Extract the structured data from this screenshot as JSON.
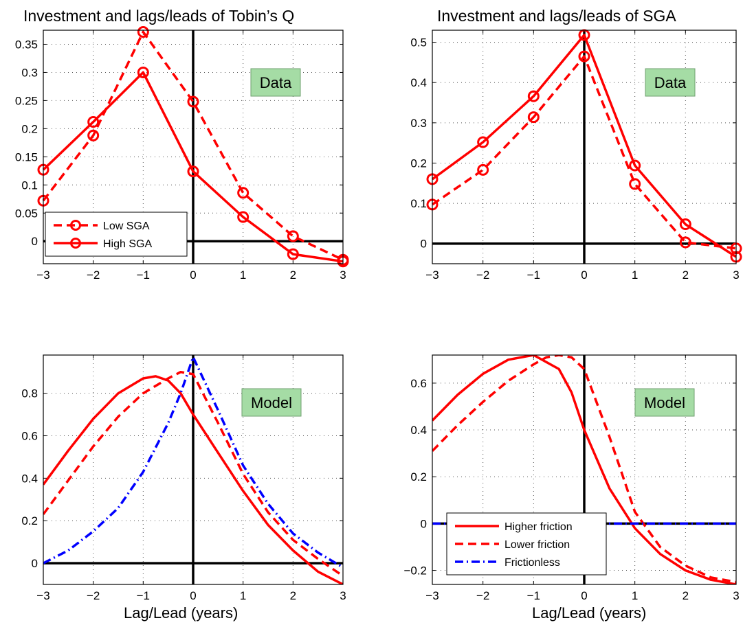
{
  "chart_data": [
    {
      "id": "tl",
      "type": "line",
      "title": "Investment and lags/leads of Tobin’s Q",
      "badge": "Data",
      "xlabel": "",
      "xlim": [
        -3,
        3
      ],
      "ylim": [
        -0.04,
        0.375
      ],
      "xticks": [
        -3,
        -2,
        -1,
        0,
        1,
        2,
        3
      ],
      "yticks": [
        0,
        0.05,
        0.1,
        0.15,
        0.2,
        0.25,
        0.3,
        0.35
      ],
      "ytick_labels": [
        "0",
        "0.05",
        "0.1",
        "0.15",
        "0.2",
        "0.25",
        "0.3",
        "0.35"
      ],
      "grid": true,
      "legend_position": "bottom-left",
      "series": [
        {
          "name": "Low SGA",
          "style": "dashed",
          "marker": "circle",
          "color": "#ff0000",
          "x": [
            -3,
            -2,
            -1,
            0,
            1,
            2,
            3
          ],
          "y": [
            0.072,
            0.188,
            0.372,
            0.248,
            0.086,
            0.009,
            -0.033
          ]
        },
        {
          "name": "High SGA",
          "style": "solid",
          "marker": "circle",
          "color": "#ff0000",
          "x": [
            -3,
            -2,
            -1,
            0,
            1,
            2,
            3
          ],
          "y": [
            0.127,
            0.212,
            0.3,
            0.124,
            0.043,
            -0.023,
            -0.036
          ]
        }
      ]
    },
    {
      "id": "tr",
      "type": "line",
      "title": "Investment and lags/leads of SGA",
      "badge": "Data",
      "xlabel": "",
      "xlim": [
        -3,
        3
      ],
      "ylim": [
        -0.05,
        0.53
      ],
      "xticks": [
        -3,
        -2,
        -1,
        0,
        1,
        2,
        3
      ],
      "yticks": [
        0,
        0.1,
        0.2,
        0.3,
        0.4,
        0.5
      ],
      "ytick_labels": [
        "0",
        "0.1",
        "0.2",
        "0.3",
        "0.4",
        "0.5"
      ],
      "grid": true,
      "legend_position": "none",
      "series": [
        {
          "name": "",
          "style": "dashed",
          "marker": "circle",
          "color": "#ff0000",
          "x": [
            -3,
            -2,
            -1,
            0,
            1,
            2,
            3
          ],
          "y": [
            0.097,
            0.183,
            0.314,
            0.465,
            0.148,
            0.003,
            -0.012
          ]
        },
        {
          "name": "",
          "style": "solid",
          "marker": "circle",
          "color": "#ff0000",
          "x": [
            -3,
            -2,
            -1,
            0,
            1,
            2,
            3
          ],
          "y": [
            0.16,
            0.252,
            0.366,
            0.518,
            0.194,
            0.048,
            -0.033
          ]
        }
      ]
    },
    {
      "id": "bl",
      "type": "line",
      "title": "",
      "badge": "Model",
      "xlabel": "Lag/Lead (years)",
      "xlim": [
        -3,
        3
      ],
      "ylim": [
        -0.1,
        0.98
      ],
      "xticks": [
        -3,
        -2,
        -1,
        0,
        1,
        2,
        3
      ],
      "yticks": [
        0,
        0.2,
        0.4,
        0.6,
        0.8
      ],
      "ytick_labels": [
        "0",
        "0.2",
        "0.4",
        "0.6",
        "0.8"
      ],
      "grid": true,
      "legend_position": "none",
      "series": [
        {
          "name": "",
          "style": "solid",
          "marker": "none",
          "color": "#ff0000",
          "x": [
            -3,
            -2.5,
            -2,
            -1.5,
            -1,
            -0.75,
            -0.5,
            -0.25,
            0,
            0.5,
            1,
            1.5,
            2,
            2.5,
            3
          ],
          "y": [
            0.37,
            0.53,
            0.68,
            0.8,
            0.87,
            0.88,
            0.86,
            0.8,
            0.7,
            0.52,
            0.34,
            0.18,
            0.06,
            -0.04,
            -0.1
          ]
        },
        {
          "name": "",
          "style": "dashed",
          "marker": "none",
          "color": "#ff0000",
          "x": [
            -3,
            -2.5,
            -2,
            -1.5,
            -1,
            -0.5,
            -0.25,
            0,
            0.5,
            1,
            1.5,
            2,
            2.5,
            3
          ],
          "y": [
            0.23,
            0.39,
            0.55,
            0.69,
            0.8,
            0.87,
            0.9,
            0.89,
            0.66,
            0.42,
            0.24,
            0.11,
            0.02,
            -0.06
          ]
        },
        {
          "name": "",
          "style": "dashdot",
          "marker": "none",
          "color": "#0000ff",
          "x": [
            -3,
            -2.5,
            -2,
            -1.5,
            -1,
            -0.5,
            -0.25,
            0,
            0.5,
            1,
            1.5,
            2,
            2.5,
            3
          ],
          "y": [
            0.0,
            0.06,
            0.15,
            0.26,
            0.43,
            0.66,
            0.8,
            0.97,
            0.72,
            0.46,
            0.28,
            0.14,
            0.05,
            -0.02
          ]
        }
      ]
    },
    {
      "id": "br",
      "type": "line",
      "title": "",
      "badge": "Model",
      "xlabel": "Lag/Lead (years)",
      "xlim": [
        -3,
        3
      ],
      "ylim": [
        -0.26,
        0.72
      ],
      "xticks": [
        -3,
        -2,
        -1,
        0,
        1,
        2,
        3
      ],
      "yticks": [
        -0.2,
        0,
        0.2,
        0.4,
        0.6
      ],
      "ytick_labels": [
        "−0.2",
        "0",
        "0.2",
        "0.4",
        "0.6"
      ],
      "grid": true,
      "legend_position": "bottom-left",
      "series": [
        {
          "name": "Higher friction",
          "style": "solid",
          "marker": "none",
          "color": "#ff0000",
          "x": [
            -3,
            -2.5,
            -2,
            -1.5,
            -1,
            -0.5,
            -0.25,
            0,
            0.5,
            1,
            1.5,
            2,
            2.5,
            3
          ],
          "y": [
            0.44,
            0.55,
            0.64,
            0.7,
            0.72,
            0.66,
            0.56,
            0.4,
            0.15,
            -0.02,
            -0.13,
            -0.2,
            -0.24,
            -0.26
          ]
        },
        {
          "name": "Lower friction",
          "style": "dashed",
          "marker": "none",
          "color": "#ff0000",
          "x": [
            -3,
            -2.5,
            -2,
            -1.5,
            -1,
            -0.75,
            -0.5,
            -0.25,
            0,
            0.5,
            1,
            1.5,
            2,
            2.5,
            3
          ],
          "y": [
            0.31,
            0.42,
            0.52,
            0.61,
            0.68,
            0.71,
            0.72,
            0.71,
            0.66,
            0.37,
            0.05,
            -0.1,
            -0.18,
            -0.23,
            -0.25
          ]
        },
        {
          "name": "Frictionless",
          "style": "dashdot",
          "marker": "none",
          "color": "#0000ff",
          "x": [
            -3,
            3
          ],
          "y": [
            0,
            0
          ]
        }
      ]
    }
  ]
}
